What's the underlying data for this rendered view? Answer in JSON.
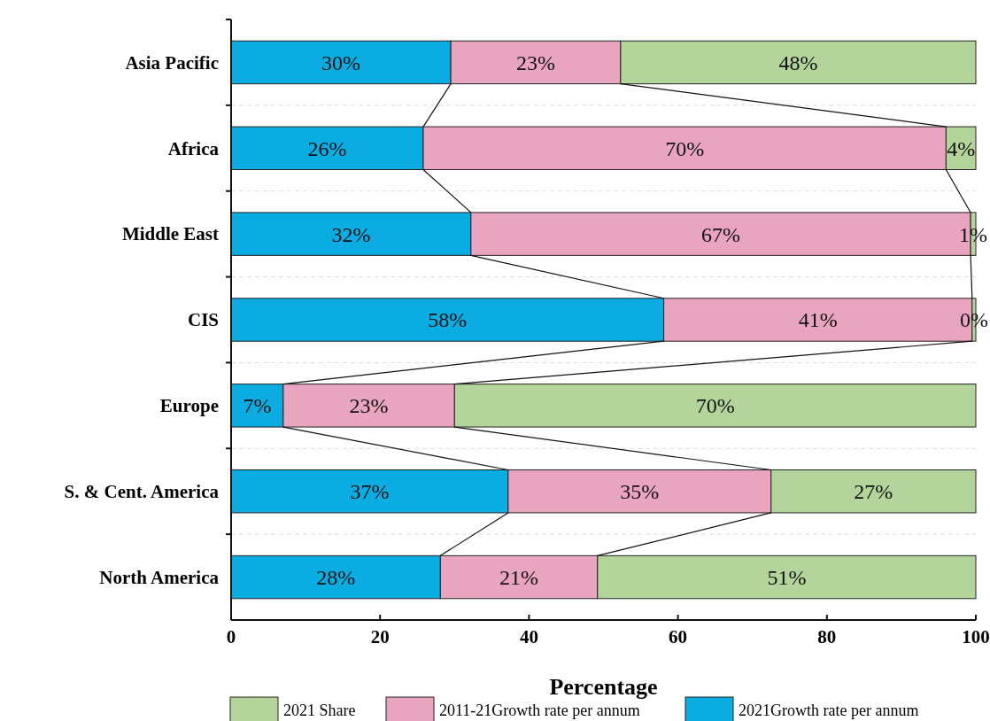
{
  "chart_data": {
    "type": "bar",
    "orientation": "horizontal",
    "stacked": true,
    "xlabel": "Percentage",
    "categories": [
      "Asia Pacific",
      "Africa",
      "Middle East",
      "CIS",
      "Europe",
      "S. & Cent. America",
      "North America"
    ],
    "series": [
      {
        "name": "2021Growth rate per annum",
        "color": "#0aace2",
        "values": [
          29.5,
          25.8,
          32.2,
          58.1,
          7.0,
          37.2,
          28.1
        ],
        "value_labels": [
          "30%",
          "26%",
          "32%",
          "58%",
          "7%",
          "37%",
          "28%"
        ]
      },
      {
        "name": "2011-21Growth rate per annum",
        "color": "#e9a4c0",
        "values": [
          22.8,
          70.2,
          67.1,
          41.4,
          23.0,
          35.3,
          21.1
        ],
        "value_labels": [
          "23%",
          "70%",
          "67%",
          "41%",
          "23%",
          "35%",
          "21%"
        ]
      },
      {
        "name": "2021 Share",
        "color": "#b3d59c",
        "values": [
          47.7,
          4.0,
          0.7,
          0.5,
          70.0,
          27.5,
          50.8
        ],
        "value_labels": [
          "48%",
          "4%",
          "1%",
          "0%",
          "70%",
          "27%",
          "51%"
        ]
      }
    ],
    "xlim": [
      0,
      100
    ],
    "xticks": [
      0,
      20,
      40,
      60,
      80,
      100
    ],
    "grid": "y",
    "legend": "bottom"
  }
}
